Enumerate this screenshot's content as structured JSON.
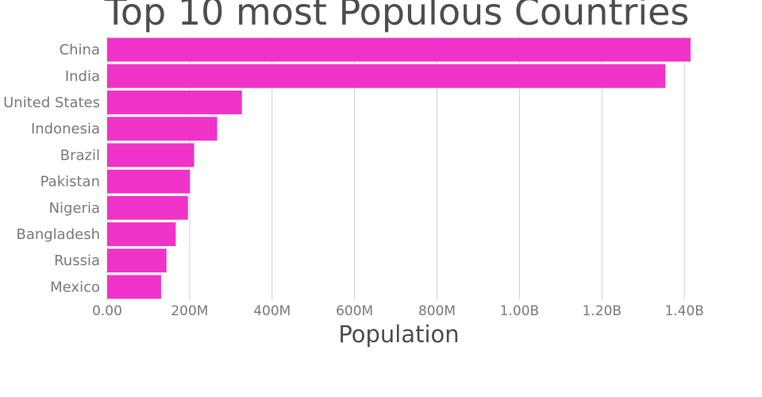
{
  "chart_data": {
    "type": "bar",
    "orientation": "horizontal",
    "title": "Top 10 most Populous Countries",
    "xlabel": "Population",
    "ylabel": "",
    "categories": [
      "China",
      "India",
      "United States",
      "Indonesia",
      "Brazil",
      "Pakistan",
      "Nigeria",
      "Bangladesh",
      "Russia",
      "Mexico"
    ],
    "values": [
      1415000000,
      1354000000,
      326800000,
      266800000,
      210900000,
      200800000,
      195900000,
      166400000,
      143900000,
      130800000
    ],
    "xlim": [
      0,
      1415000000
    ],
    "x_ticks": [
      0,
      200000000,
      400000000,
      600000000,
      800000000,
      1000000000,
      1200000000,
      1400000000
    ],
    "x_tick_labels": [
      "0.00",
      "200M",
      "400M",
      "600M",
      "800M",
      "1.00B",
      "1.20B",
      "1.40B"
    ],
    "grid": true,
    "bar_color": "#ef33c8"
  }
}
